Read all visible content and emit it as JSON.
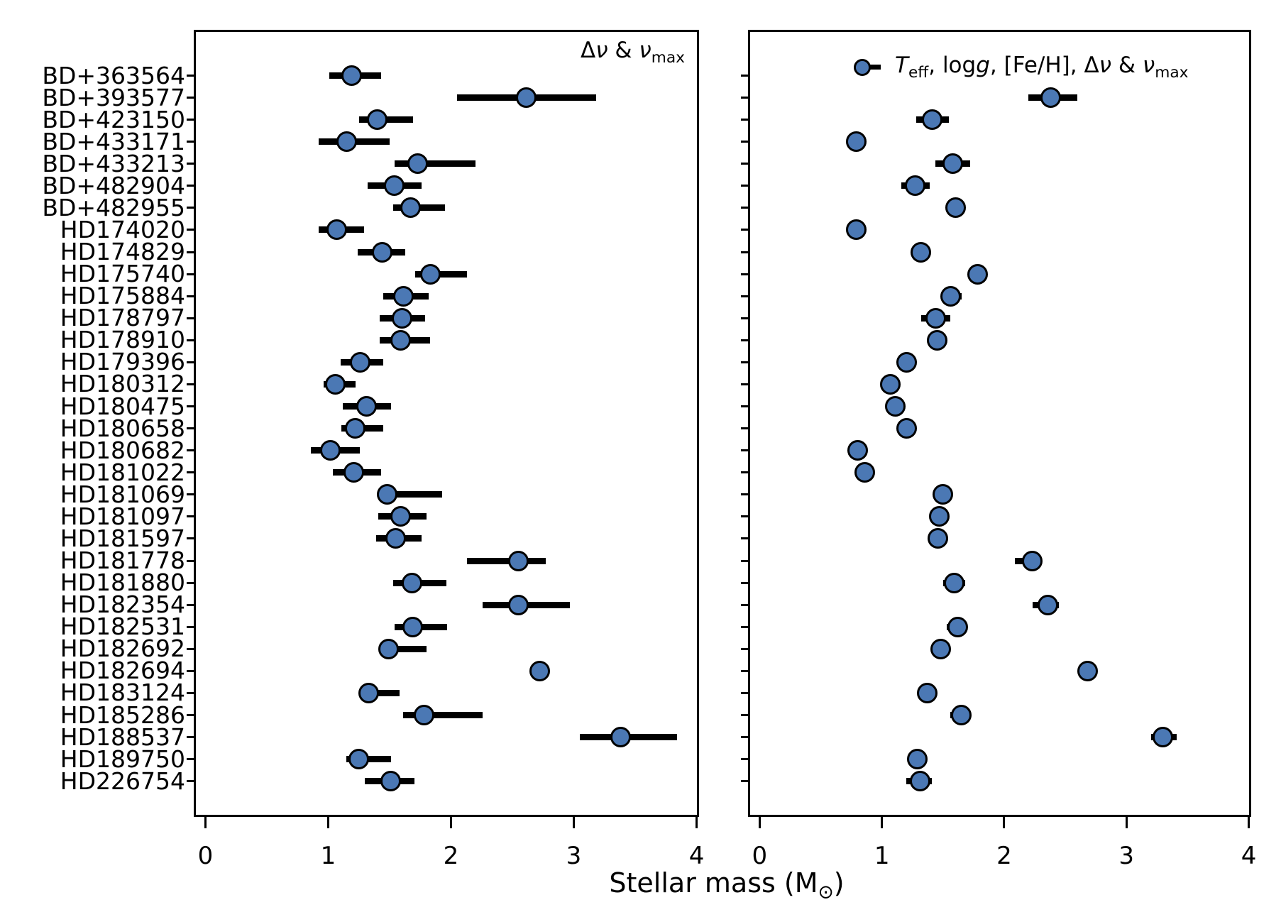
{
  "figure": {
    "xlabel_text": "Stellar mass (M⊙)",
    "xlabel_html": "Stellar mass (M<sub>⊙</sub>)",
    "x_ticks": [
      "0",
      "1",
      "2",
      "3",
      "4"
    ],
    "marker_fill": "#4b78b4",
    "marker_edge": "#000000",
    "errorbar_color": "#000000"
  },
  "chart_data": {
    "type": "scatter",
    "title": "",
    "xlabel": "Stellar mass (M⊙)",
    "x_range": [
      0,
      4
    ],
    "grid": false,
    "legend_position": "upper-right-inside",
    "categories": [
      "BD+363564",
      "BD+393577",
      "BD+423150",
      "BD+433171",
      "BD+433213",
      "BD+482904",
      "BD+482955",
      "HD174020",
      "HD174829",
      "HD175740",
      "HD175884",
      "HD178797",
      "HD178910",
      "HD179396",
      "HD180312",
      "HD180475",
      "HD180658",
      "HD180682",
      "HD181022",
      "HD181069",
      "HD181097",
      "HD181597",
      "HD181778",
      "HD181880",
      "HD182354",
      "HD182531",
      "HD182692",
      "HD182694",
      "HD183124",
      "HD185286",
      "HD188537",
      "HD189750",
      "HD226754"
    ],
    "panels": [
      {
        "id": "left",
        "legend_text": "Δν & ν_max",
        "legend_html": "Δ<i>ν</i> &amp; <i>ν</i><sub>max</sub>",
        "points": [
          {
            "star": "BD+363564",
            "m": 1.19,
            "lo": 1.01,
            "hi": 1.43
          },
          {
            "star": "BD+393577",
            "m": 2.61,
            "lo": 2.05,
            "hi": 3.18
          },
          {
            "star": "BD+423150",
            "m": 1.4,
            "lo": 1.25,
            "hi": 1.69
          },
          {
            "star": "BD+433171",
            "m": 1.15,
            "lo": 0.92,
            "hi": 1.5
          },
          {
            "star": "BD+433213",
            "m": 1.73,
            "lo": 1.54,
            "hi": 2.2
          },
          {
            "star": "BD+482904",
            "m": 1.54,
            "lo": 1.32,
            "hi": 1.76
          },
          {
            "star": "BD+482955",
            "m": 1.67,
            "lo": 1.53,
            "hi": 1.95
          },
          {
            "star": "HD174020",
            "m": 1.07,
            "lo": 0.92,
            "hi": 1.29
          },
          {
            "star": "HD174829",
            "m": 1.44,
            "lo": 1.24,
            "hi": 1.63
          },
          {
            "star": "HD175740",
            "m": 1.83,
            "lo": 1.71,
            "hi": 2.13
          },
          {
            "star": "HD175884",
            "m": 1.61,
            "lo": 1.45,
            "hi": 1.82
          },
          {
            "star": "HD178797",
            "m": 1.6,
            "lo": 1.42,
            "hi": 1.79
          },
          {
            "star": "HD178910",
            "m": 1.59,
            "lo": 1.42,
            "hi": 1.83
          },
          {
            "star": "HD179396",
            "m": 1.26,
            "lo": 1.1,
            "hi": 1.45
          },
          {
            "star": "HD180312",
            "m": 1.06,
            "lo": 0.96,
            "hi": 1.22
          },
          {
            "star": "HD180475",
            "m": 1.31,
            "lo": 1.12,
            "hi": 1.51
          },
          {
            "star": "HD180658",
            "m": 1.22,
            "lo": 1.11,
            "hi": 1.45
          },
          {
            "star": "HD180682",
            "m": 1.02,
            "lo": 0.86,
            "hi": 1.26
          },
          {
            "star": "HD181022",
            "m": 1.21,
            "lo": 1.04,
            "hi": 1.43
          },
          {
            "star": "HD181069",
            "m": 1.48,
            "lo": 1.42,
            "hi": 1.93
          },
          {
            "star": "HD181097",
            "m": 1.59,
            "lo": 1.41,
            "hi": 1.8
          },
          {
            "star": "HD181597",
            "m": 1.55,
            "lo": 1.39,
            "hi": 1.76
          },
          {
            "star": "HD181778",
            "m": 2.55,
            "lo": 2.13,
            "hi": 2.77
          },
          {
            "star": "HD181880",
            "m": 1.68,
            "lo": 1.53,
            "hi": 1.96
          },
          {
            "star": "HD182354",
            "m": 2.55,
            "lo": 2.26,
            "hi": 2.97
          },
          {
            "star": "HD182531",
            "m": 1.69,
            "lo": 1.54,
            "hi": 1.97
          },
          {
            "star": "HD182692",
            "m": 1.49,
            "lo": 1.44,
            "hi": 1.8
          },
          {
            "star": "HD182694",
            "m": 2.72,
            "lo": 2.65,
            "hi": 2.8
          },
          {
            "star": "HD183124",
            "m": 1.33,
            "lo": 1.26,
            "hi": 1.58
          },
          {
            "star": "HD185286",
            "m": 1.78,
            "lo": 1.61,
            "hi": 2.26
          },
          {
            "star": "HD188537",
            "m": 3.38,
            "lo": 3.05,
            "hi": 3.84
          },
          {
            "star": "HD189750",
            "m": 1.25,
            "lo": 1.15,
            "hi": 1.51
          },
          {
            "star": "HD226754",
            "m": 1.51,
            "lo": 1.3,
            "hi": 1.7
          }
        ]
      },
      {
        "id": "right",
        "legend_text": "T_eff, logg, [Fe/H], Δν & ν_max",
        "legend_html": "<i>T</i><sub>eff</sub>, log<i>g</i>, [Fe/H], Δ<i>ν</i> &amp; <i>ν</i><sub>max</sub>",
        "points": [
          {
            "star": "BD+363564",
            "m": null,
            "lo": null,
            "hi": null
          },
          {
            "star": "BD+393577",
            "m": 2.38,
            "lo": 2.2,
            "hi": 2.6
          },
          {
            "star": "BD+423150",
            "m": 1.41,
            "lo": 1.28,
            "hi": 1.55
          },
          {
            "star": "BD+433171",
            "m": 0.79,
            "lo": 0.76,
            "hi": 0.82
          },
          {
            "star": "BD+433213",
            "m": 1.58,
            "lo": 1.44,
            "hi": 1.72
          },
          {
            "star": "BD+482904",
            "m": 1.27,
            "lo": 1.16,
            "hi": 1.39
          },
          {
            "star": "BD+482955",
            "m": 1.6,
            "lo": 1.53,
            "hi": 1.67
          },
          {
            "star": "HD174020",
            "m": 0.79,
            "lo": 0.76,
            "hi": 0.82
          },
          {
            "star": "HD174829",
            "m": 1.32,
            "lo": 1.25,
            "hi": 1.39
          },
          {
            "star": "HD175740",
            "m": 1.78,
            "lo": 1.74,
            "hi": 1.82
          },
          {
            "star": "HD175884",
            "m": 1.56,
            "lo": 1.49,
            "hi": 1.65
          },
          {
            "star": "HD178797",
            "m": 1.44,
            "lo": 1.32,
            "hi": 1.56
          },
          {
            "star": "HD178910",
            "m": 1.45,
            "lo": 1.41,
            "hi": 1.49
          },
          {
            "star": "HD179396",
            "m": 1.2,
            "lo": 1.16,
            "hi": 1.24
          },
          {
            "star": "HD180312",
            "m": 1.07,
            "lo": 1.03,
            "hi": 1.11
          },
          {
            "star": "HD180475",
            "m": 1.11,
            "lo": 1.03,
            "hi": 1.18
          },
          {
            "star": "HD180658",
            "m": 1.2,
            "lo": 1.16,
            "hi": 1.24
          },
          {
            "star": "HD180682",
            "m": 0.8,
            "lo": 0.77,
            "hi": 0.83
          },
          {
            "star": "HD181022",
            "m": 0.86,
            "lo": 0.83,
            "hi": 0.89
          },
          {
            "star": "HD181069",
            "m": 1.5,
            "lo": 1.46,
            "hi": 1.54
          },
          {
            "star": "HD181097",
            "m": 1.47,
            "lo": 1.42,
            "hi": 1.53
          },
          {
            "star": "HD181597",
            "m": 1.46,
            "lo": 1.42,
            "hi": 1.5
          },
          {
            "star": "HD181778",
            "m": 2.23,
            "lo": 2.09,
            "hi": 2.31
          },
          {
            "star": "HD181880",
            "m": 1.59,
            "lo": 1.5,
            "hi": 1.68
          },
          {
            "star": "HD182354",
            "m": 2.36,
            "lo": 2.23,
            "hi": 2.45
          },
          {
            "star": "HD182531",
            "m": 1.62,
            "lo": 1.53,
            "hi": 1.7
          },
          {
            "star": "HD182692",
            "m": 1.48,
            "lo": 1.44,
            "hi": 1.52
          },
          {
            "star": "HD182694",
            "m": 2.68,
            "lo": 2.63,
            "hi": 2.73
          },
          {
            "star": "HD183124",
            "m": 1.37,
            "lo": 1.33,
            "hi": 1.41
          },
          {
            "star": "HD185286",
            "m": 1.65,
            "lo": 1.56,
            "hi": 1.71
          },
          {
            "star": "HD188537",
            "m": 3.3,
            "lo": 3.2,
            "hi": 3.41
          },
          {
            "star": "HD189750",
            "m": 1.29,
            "lo": 1.21,
            "hi": 1.37
          },
          {
            "star": "HD226754",
            "m": 1.31,
            "lo": 1.2,
            "hi": 1.41
          }
        ]
      }
    ]
  }
}
